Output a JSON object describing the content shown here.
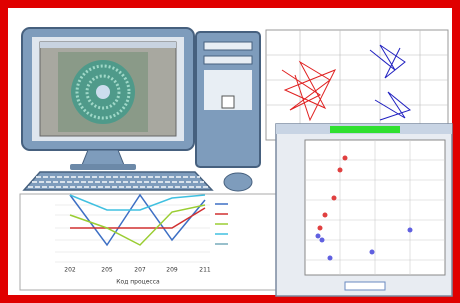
{
  "line_chart": {
    "x_labels": [
      "202",
      "205",
      "207",
      "209",
      "211"
    ],
    "x_title": "Код процесса"
  }
}
